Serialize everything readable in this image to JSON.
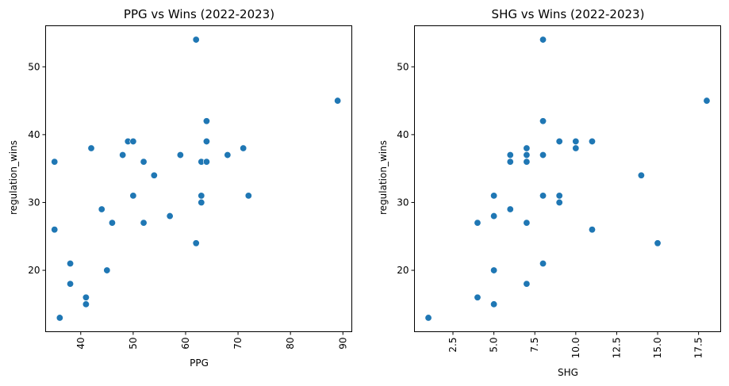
{
  "chart_data": [
    {
      "type": "scatter",
      "title": "PPG vs Wins (2022-2023)",
      "xlabel": "PPG",
      "ylabel": "regulation_wins",
      "xlim": [
        33.3,
        91.7
      ],
      "ylim": [
        10.95,
        56.05
      ],
      "xticks": [
        40,
        50,
        60,
        70,
        80,
        90
      ],
      "xtick_labels": [
        "40",
        "50",
        "60",
        "70",
        "80",
        "90"
      ],
      "yticks": [
        20,
        30,
        40,
        50
      ],
      "ytick_labels": [
        "20",
        "30",
        "40",
        "50"
      ],
      "x_tick_rotation": 90,
      "grid": false,
      "color": "#1f77b4",
      "points": [
        {
          "x": 62,
          "y": 54
        },
        {
          "x": 89,
          "y": 45
        },
        {
          "x": 64,
          "y": 42
        },
        {
          "x": 64,
          "y": 39
        },
        {
          "x": 49,
          "y": 39
        },
        {
          "x": 50,
          "y": 39
        },
        {
          "x": 71,
          "y": 38
        },
        {
          "x": 42,
          "y": 38
        },
        {
          "x": 48,
          "y": 37
        },
        {
          "x": 59,
          "y": 37
        },
        {
          "x": 68,
          "y": 37
        },
        {
          "x": 35,
          "y": 36
        },
        {
          "x": 52,
          "y": 36
        },
        {
          "x": 63,
          "y": 36
        },
        {
          "x": 64,
          "y": 36
        },
        {
          "x": 54,
          "y": 34
        },
        {
          "x": 50,
          "y": 31
        },
        {
          "x": 63,
          "y": 31
        },
        {
          "x": 72,
          "y": 31
        },
        {
          "x": 63,
          "y": 30
        },
        {
          "x": 44,
          "y": 29
        },
        {
          "x": 57,
          "y": 28
        },
        {
          "x": 46,
          "y": 27
        },
        {
          "x": 52,
          "y": 27
        },
        {
          "x": 35,
          "y": 26
        },
        {
          "x": 62,
          "y": 24
        },
        {
          "x": 38,
          "y": 21
        },
        {
          "x": 45,
          "y": 20
        },
        {
          "x": 38,
          "y": 18
        },
        {
          "x": 41,
          "y": 16
        },
        {
          "x": 41,
          "y": 15
        },
        {
          "x": 36,
          "y": 13
        }
      ]
    },
    {
      "type": "scatter",
      "title": "SHG vs Wins (2022-2023)",
      "xlabel": "SHG",
      "ylabel": "regulation_wins",
      "xlim": [
        0.15,
        18.85
      ],
      "ylim": [
        10.95,
        56.05
      ],
      "xticks": [
        2.5,
        5.0,
        7.5,
        10.0,
        12.5,
        15.0,
        17.5
      ],
      "xtick_labels": [
        "2.5",
        "5.0",
        "7.5",
        "10.0",
        "12.5",
        "15.0",
        "17.5"
      ],
      "yticks": [
        20,
        30,
        40,
        50
      ],
      "ytick_labels": [
        "20",
        "30",
        "40",
        "50"
      ],
      "x_tick_rotation": 90,
      "grid": false,
      "color": "#1f77b4",
      "points": [
        {
          "x": 8,
          "y": 54
        },
        {
          "x": 18,
          "y": 45
        },
        {
          "x": 8,
          "y": 42
        },
        {
          "x": 9,
          "y": 39
        },
        {
          "x": 10,
          "y": 39
        },
        {
          "x": 11,
          "y": 39
        },
        {
          "x": 7,
          "y": 38
        },
        {
          "x": 10,
          "y": 38
        },
        {
          "x": 6,
          "y": 37
        },
        {
          "x": 7,
          "y": 37
        },
        {
          "x": 8,
          "y": 37
        },
        {
          "x": 6,
          "y": 36
        },
        {
          "x": 7,
          "y": 36
        },
        {
          "x": 14,
          "y": 34
        },
        {
          "x": 5,
          "y": 31
        },
        {
          "x": 8,
          "y": 31
        },
        {
          "x": 9,
          "y": 31
        },
        {
          "x": 9,
          "y": 30
        },
        {
          "x": 6,
          "y": 29
        },
        {
          "x": 5,
          "y": 28
        },
        {
          "x": 4,
          "y": 27
        },
        {
          "x": 7,
          "y": 27
        },
        {
          "x": 11,
          "y": 26
        },
        {
          "x": 15,
          "y": 24
        },
        {
          "x": 8,
          "y": 21
        },
        {
          "x": 5,
          "y": 20
        },
        {
          "x": 7,
          "y": 18
        },
        {
          "x": 4,
          "y": 16
        },
        {
          "x": 5,
          "y": 15
        },
        {
          "x": 1,
          "y": 13
        }
      ]
    }
  ]
}
